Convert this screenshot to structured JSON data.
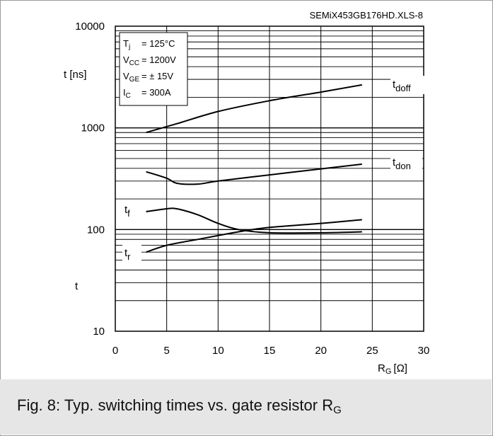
{
  "chart_data": {
    "type": "line",
    "source_note": "SEMiX453GB176HD.XLS-8",
    "xlabel": "R",
    "xlabel_sub": "G",
    "xlabel_unit": "[Ω]",
    "ylabel": "t [ns]",
    "ylabel_secondary": "t",
    "xlim": [
      0,
      30
    ],
    "ylim": [
      10,
      10000
    ],
    "y_scale": "log",
    "grid": true,
    "x_ticks": [
      "0",
      "5",
      "10",
      "15",
      "20",
      "25",
      "30"
    ],
    "y_ticks": [
      "10",
      "100",
      "1000",
      "10000"
    ],
    "conditions": [
      {
        "sym": "T",
        "sub": "j",
        "val": "= 125°C"
      },
      {
        "sym": "V",
        "sub": "CC",
        "val": "= 1200V"
      },
      {
        "sym": "V",
        "sub": "GE",
        "val": "= ± 15V"
      },
      {
        "sym": "I",
        "sub": "C",
        "val": "= 300A"
      }
    ],
    "series": [
      {
        "name": "t",
        "sub": "doff",
        "points": [
          [
            3,
            900
          ],
          [
            6,
            1100
          ],
          [
            10,
            1450
          ],
          [
            15,
            1850
          ],
          [
            20,
            2250
          ],
          [
            24,
            2650
          ]
        ]
      },
      {
        "name": "t",
        "sub": "don",
        "points": [
          [
            3,
            370
          ],
          [
            5,
            320
          ],
          [
            6,
            285
          ],
          [
            8,
            280
          ],
          [
            10,
            300
          ],
          [
            15,
            345
          ],
          [
            20,
            395
          ],
          [
            24,
            440
          ]
        ]
      },
      {
        "name": "t",
        "sub": "f",
        "points": [
          [
            3,
            150
          ],
          [
            5,
            160
          ],
          [
            6,
            160
          ],
          [
            8,
            140
          ],
          [
            10,
            115
          ],
          [
            12,
            100
          ],
          [
            15,
            93
          ],
          [
            20,
            93
          ],
          [
            24,
            95
          ]
        ]
      },
      {
        "name": "t",
        "sub": "r",
        "points": [
          [
            3,
            60
          ],
          [
            5,
            70
          ],
          [
            8,
            80
          ],
          [
            12,
            95
          ],
          [
            15,
            105
          ],
          [
            20,
            115
          ],
          [
            24,
            125
          ]
        ]
      }
    ]
  },
  "caption": {
    "text": "Fig. 8: Typ. switching times vs. gate resistor R",
    "sub": "G"
  }
}
